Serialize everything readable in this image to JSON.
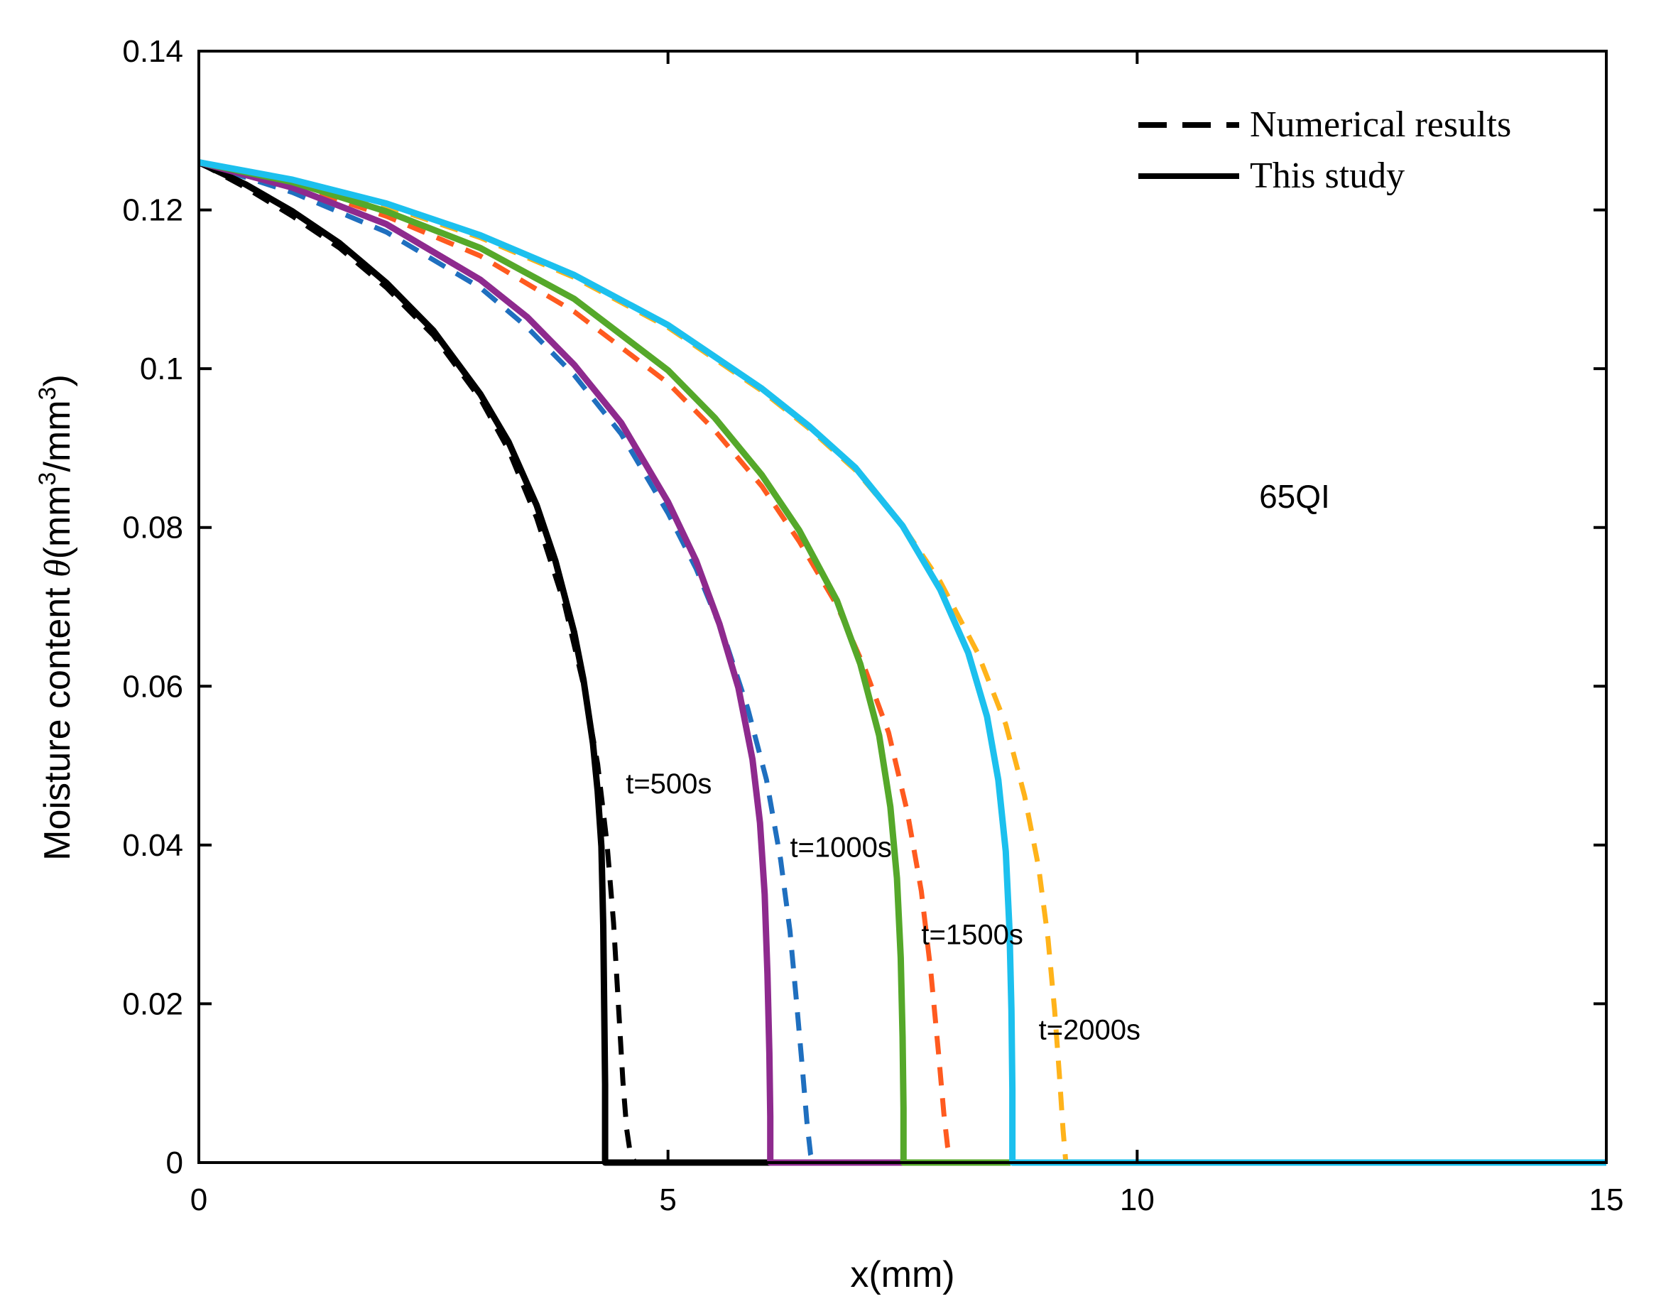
{
  "chart_data": {
    "type": "line",
    "title": "",
    "xlabel": "x(mm)",
    "ylabel_parts": [
      "Moisture content ",
      "θ",
      "(mm",
      "3",
      "/mm",
      "3",
      ")"
    ],
    "xlim": [
      0,
      15
    ],
    "ylim": [
      0,
      0.14
    ],
    "x_ticks": [
      0,
      5,
      10,
      15
    ],
    "x_tick_labels": [
      "0",
      "5",
      "10",
      "15"
    ],
    "y_ticks": [
      0,
      0.02,
      0.04,
      0.06,
      0.08,
      0.1,
      0.12,
      0.14
    ],
    "y_tick_labels": [
      "0",
      "0.02",
      "0.04",
      "0.06",
      "0.08",
      "0.1",
      "0.12",
      "0.14"
    ],
    "grid": false,
    "legend": {
      "position": "top-right",
      "entries": [
        {
          "label": "Numerical results",
          "style": "dashed",
          "color": "#000000"
        },
        {
          "label": "This study",
          "style": "solid",
          "color": "#000000"
        }
      ]
    },
    "annotations": [
      {
        "text": "65QI",
        "x": 11.3,
        "y": 0.0825,
        "size": "big"
      },
      {
        "text": "t=500s",
        "x": 4.55,
        "y": 0.0465
      },
      {
        "text": "t=1000s",
        "x": 6.3,
        "y": 0.0385
      },
      {
        "text": "t=1500s",
        "x": 7.7,
        "y": 0.0275
      },
      {
        "text": "t=2000s",
        "x": 8.95,
        "y": 0.0155
      }
    ],
    "series": [
      {
        "name": "Numerical results t=500s",
        "style": "dashed",
        "color": "#000000",
        "x": [
          0,
          0.5,
          1.0,
          1.5,
          2.0,
          2.5,
          3.0,
          3.3,
          3.6,
          3.9,
          4.1,
          4.25,
          4.35,
          4.42,
          4.47,
          4.52,
          4.56,
          4.6,
          4.65,
          4.7
        ],
        "y": [
          0.126,
          0.1228,
          0.1192,
          0.1152,
          0.1102,
          0.1042,
          0.0962,
          0.0898,
          0.0812,
          0.0702,
          0.0602,
          0.0502,
          0.0402,
          0.0302,
          0.0202,
          0.0102,
          0.0042,
          0.001,
          0,
          0
        ]
      },
      {
        "name": "This study t=500s",
        "style": "solid",
        "color": "#000000",
        "x": [
          0,
          0.5,
          1.0,
          1.5,
          2.0,
          2.5,
          3.0,
          3.3,
          3.6,
          3.8,
          4.0,
          4.1,
          4.2,
          4.25,
          4.29,
          4.31,
          4.32,
          4.33,
          4.33,
          6.1
        ],
        "y": [
          0.126,
          0.1232,
          0.1198,
          0.1158,
          0.1108,
          0.1048,
          0.0968,
          0.0908,
          0.0828,
          0.0758,
          0.0668,
          0.0608,
          0.0528,
          0.0468,
          0.0398,
          0.0298,
          0.0198,
          0.0098,
          0,
          0
        ]
      },
      {
        "name": "Numerical results t=1000s",
        "style": "dashed",
        "color": "#1f6fbf",
        "x": [
          0,
          1.0,
          2.0,
          3.0,
          3.5,
          4.0,
          4.5,
          5.0,
          5.3,
          5.6,
          5.85,
          6.05,
          6.2,
          6.3,
          6.37,
          6.43,
          6.48,
          6.52,
          6.55
        ],
        "y": [
          0.126,
          0.1222,
          0.1172,
          0.1102,
          0.1052,
          0.0992,
          0.0918,
          0.0818,
          0.0748,
          0.0662,
          0.0572,
          0.0482,
          0.0382,
          0.0292,
          0.0202,
          0.0122,
          0.0052,
          0.001,
          0
        ]
      },
      {
        "name": "This study t=1000s",
        "style": "solid",
        "color": "#8e2a8e",
        "x": [
          0,
          1.0,
          2.0,
          3.0,
          3.5,
          4.0,
          4.5,
          5.0,
          5.3,
          5.55,
          5.75,
          5.9,
          5.98,
          6.03,
          6.06,
          6.08,
          6.09,
          6.09,
          7.5
        ],
        "y": [
          0.126,
          0.1228,
          0.1182,
          0.1112,
          0.1065,
          0.1005,
          0.0932,
          0.0832,
          0.0758,
          0.0678,
          0.0598,
          0.0508,
          0.0428,
          0.0338,
          0.0238,
          0.0138,
          0.0058,
          0,
          0
        ]
      },
      {
        "name": "Numerical results t=1500s",
        "style": "dashed",
        "color": "#ff5a1f",
        "x": [
          0,
          1.0,
          2.0,
          3.0,
          4.0,
          5.0,
          5.5,
          6.0,
          6.4,
          6.8,
          7.1,
          7.35,
          7.55,
          7.7,
          7.8,
          7.88,
          7.94,
          7.98,
          8.02
        ],
        "y": [
          0.126,
          0.1232,
          0.1192,
          0.1142,
          0.1072,
          0.0982,
          0.0922,
          0.0852,
          0.0782,
          0.0702,
          0.0622,
          0.0542,
          0.0442,
          0.0342,
          0.0242,
          0.0142,
          0.0062,
          0.002,
          0
        ]
      },
      {
        "name": "This study t=1500s",
        "style": "solid",
        "color": "#55a82a",
        "x": [
          0,
          1.0,
          2.0,
          3.0,
          4.0,
          5.0,
          5.5,
          6.0,
          6.4,
          6.8,
          7.05,
          7.25,
          7.37,
          7.44,
          7.48,
          7.5,
          7.51,
          7.51,
          8.65
        ],
        "y": [
          0.126,
          0.1235,
          0.1198,
          0.1152,
          0.1088,
          0.0998,
          0.0938,
          0.0866,
          0.0796,
          0.0708,
          0.0628,
          0.0538,
          0.0448,
          0.0358,
          0.0258,
          0.0158,
          0.0068,
          0,
          0
        ]
      },
      {
        "name": "Numerical results t=2000s",
        "style": "dashed",
        "color": "#ffb31a",
        "x": [
          0,
          1.0,
          2.0,
          3.0,
          4.0,
          5.0,
          6.0,
          6.5,
          7.0,
          7.5,
          7.9,
          8.3,
          8.6,
          8.8,
          8.95,
          9.05,
          9.12,
          9.17,
          9.21,
          9.24
        ],
        "y": [
          0.126,
          0.1238,
          0.1205,
          0.1165,
          0.1115,
          0.1052,
          0.0972,
          0.0925,
          0.0872,
          0.0802,
          0.0732,
          0.0642,
          0.0552,
          0.0462,
          0.0372,
          0.0282,
          0.0192,
          0.0112,
          0.0042,
          0
        ]
      },
      {
        "name": "This study t=2000s",
        "style": "solid",
        "color": "#1cc0ee",
        "x": [
          0,
          1.0,
          2.0,
          3.0,
          4.0,
          5.0,
          6.0,
          6.5,
          7.0,
          7.5,
          7.9,
          8.2,
          8.4,
          8.52,
          8.6,
          8.64,
          8.66,
          8.67,
          8.67,
          15
        ],
        "y": [
          0.126,
          0.1238,
          0.1208,
          0.1168,
          0.1118,
          0.1055,
          0.0975,
          0.0928,
          0.0875,
          0.0802,
          0.0722,
          0.0642,
          0.0562,
          0.0482,
          0.0392,
          0.0292,
          0.0192,
          0.0092,
          0,
          0
        ]
      }
    ]
  }
}
